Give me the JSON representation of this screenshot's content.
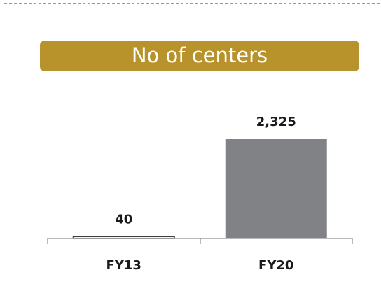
{
  "chart_data": {
    "type": "bar",
    "title": "No of centers",
    "categories": [
      "FY13",
      "FY20"
    ],
    "values": [
      40,
      2325
    ],
    "value_labels": [
      "40",
      "2,325"
    ],
    "colors": [
      "#ffffff",
      "#808285"
    ],
    "title_color": "#b8922a"
  }
}
